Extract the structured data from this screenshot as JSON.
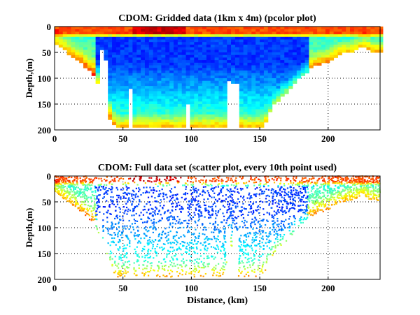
{
  "chart_data": [
    {
      "type": "heatmap",
      "title": "CDOM: Gridded data (1km x 4m) (pcolor plot)",
      "xlabel": "",
      "ylabel": "Depth,(m)",
      "xlim": [
        0,
        238
      ],
      "ylim": [
        200,
        0
      ],
      "xticks": [
        "0",
        "50",
        "100",
        "150",
        "200"
      ],
      "yticks": [
        "0",
        "50",
        "100",
        "150",
        "200"
      ],
      "grid": true,
      "colormap": "jet",
      "bottom_depth_profile": {
        "km": [
          0,
          10,
          20,
          30,
          35,
          40,
          45,
          50,
          60,
          70,
          80,
          90,
          100,
          110,
          120,
          125,
          128,
          132,
          140,
          150,
          155,
          160,
          170,
          175,
          180,
          190,
          200,
          210,
          220,
          225,
          230,
          238
        ],
        "depth_m": [
          30,
          50,
          70,
          95,
          130,
          175,
          195,
          195,
          195,
          195,
          195,
          195,
          195,
          195,
          195,
          195,
          110,
          195,
          195,
          195,
          180,
          150,
          125,
          110,
          95,
          75,
          65,
          50,
          45,
          35,
          45,
          50
        ]
      }
    },
    {
      "type": "scatter",
      "title": "CDOM: Full data set (scatter plot, every 10th point used)",
      "xlabel": "Distance, (km)",
      "ylabel": "Depth,(m)",
      "xlim": [
        0,
        238
      ],
      "ylim": [
        200,
        0
      ],
      "xticks": [
        "0",
        "50",
        "100",
        "150",
        "200"
      ],
      "yticks": [
        "0",
        "50",
        "100",
        "150",
        "200"
      ],
      "grid": true,
      "colormap": "jet"
    }
  ]
}
